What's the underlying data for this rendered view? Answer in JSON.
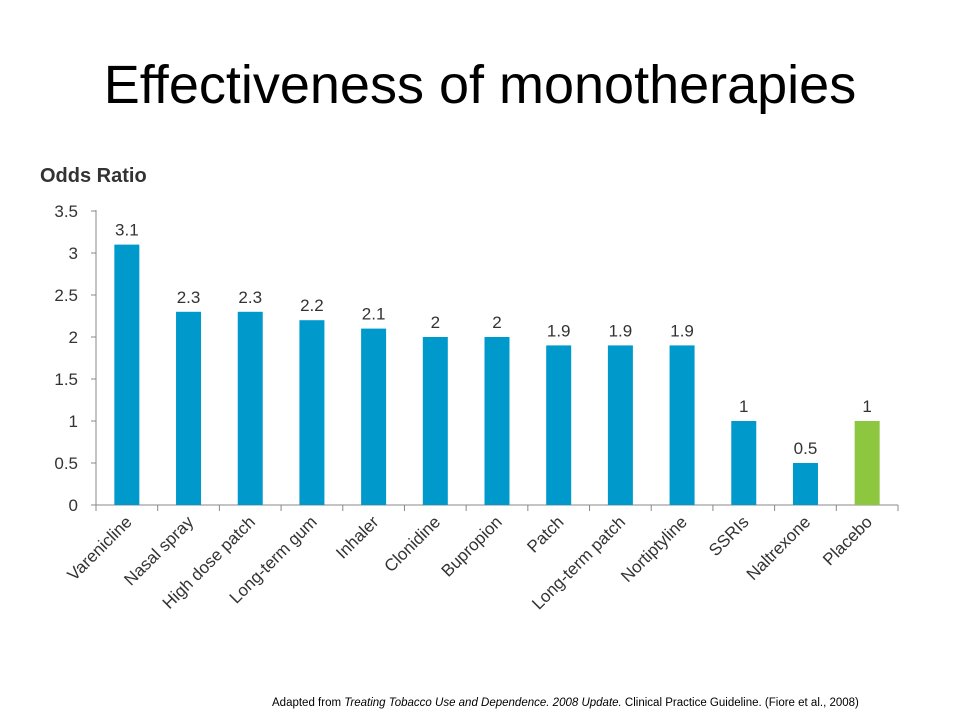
{
  "slide": {
    "title": "Effectiveness of monotherapies"
  },
  "chart_data": {
    "type": "bar",
    "ylabel": "Odds Ratio",
    "ylim": [
      0,
      3.5
    ],
    "yticks": [
      "0",
      "0.5",
      "1",
      "1.5",
      "2",
      "2.5",
      "3",
      "3.5"
    ],
    "categories": [
      "Varenicline",
      "Nasal spray",
      "High dose patch",
      "Long-term gum",
      "Inhaler",
      "Clonidine",
      "Bupropion",
      "Patch",
      "Long-term patch",
      "Nortiptyline",
      "SSRIs",
      "Naltrexone",
      "Placebo"
    ],
    "values": [
      3.1,
      2.3,
      2.3,
      2.2,
      2.1,
      2,
      2,
      1.9,
      1.9,
      1.9,
      1,
      0.5,
      1
    ],
    "value_labels": [
      "3.1",
      "2.3",
      "2.3",
      "2.2",
      "2.1",
      "2",
      "2",
      "1.9",
      "1.9",
      "1.9",
      "1",
      "0.5",
      "1"
    ],
    "colors": {
      "default": "#0099CC",
      "highlight": "#8DC63F"
    },
    "highlight_index": 12,
    "grid": false,
    "legend": "none"
  },
  "footnote": {
    "prefix": "Adapted from ",
    "source_title": "Treating Tobacco Use and Dependence.",
    "source_year": "2008 Update.",
    "suffix": " Clinical Practice Guideline. (Fiore et al., 2008)"
  }
}
